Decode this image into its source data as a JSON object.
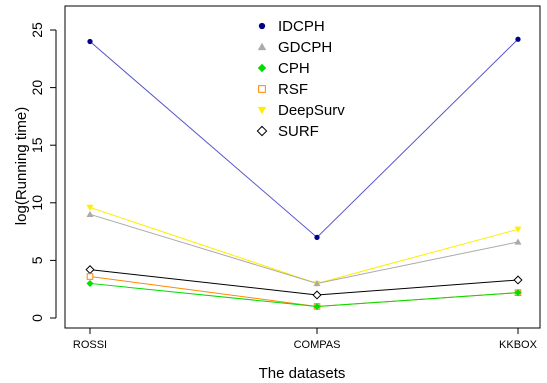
{
  "chart_data": {
    "type": "line",
    "title": "",
    "xlabel": "The datasets",
    "ylabel": "log(Running time)",
    "categories": [
      "ROSSI",
      "COMPAS",
      "KKBOX"
    ],
    "ylim": [
      0,
      25
    ],
    "yticks": [
      0,
      5,
      10,
      15,
      20,
      25
    ],
    "grid": false,
    "legend_position": "top-center",
    "series": [
      {
        "name": "IDCPH",
        "values": [
          24.0,
          7.0,
          24.2
        ],
        "marker": "circle",
        "color": "#00008b",
        "line_color": "#5555cc"
      },
      {
        "name": "GDCPH",
        "values": [
          9.0,
          3.0,
          6.6
        ],
        "marker": "triangle",
        "color": "#aaaaaa",
        "line_color": "#aaaaaa"
      },
      {
        "name": "CPH",
        "values": [
          3.0,
          1.0,
          2.2
        ],
        "marker": "diamond",
        "color": "#00dd00",
        "line_color": "#00dd00"
      },
      {
        "name": "RSF",
        "values": [
          3.6,
          1.0,
          2.2
        ],
        "marker": "square-open",
        "color": "#ff8800",
        "line_color": "#ff8800"
      },
      {
        "name": "DeepSurv",
        "values": [
          9.6,
          3.0,
          7.7
        ],
        "marker": "triangle-down",
        "color": "#ffee00",
        "line_color": "#ffee00"
      },
      {
        "name": "SURF",
        "values": [
          4.2,
          2.0,
          3.3
        ],
        "marker": "diamond-open",
        "color": "#000000",
        "line_color": "#000000"
      }
    ]
  }
}
